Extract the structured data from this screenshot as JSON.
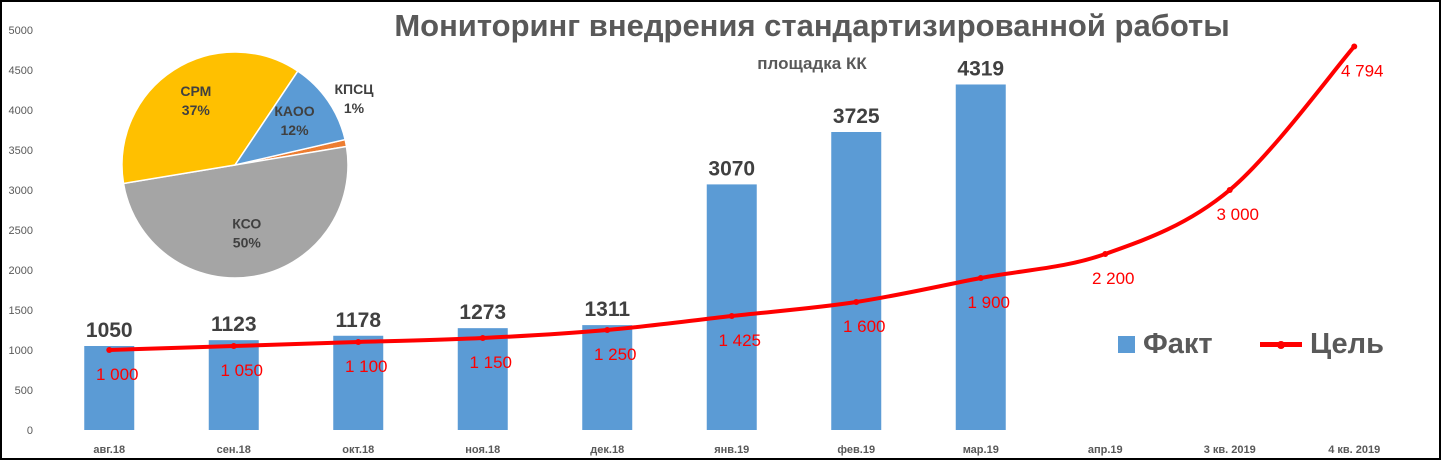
{
  "chart_data": [
    {
      "type": "bar",
      "title": "Мониторинг внедрения стандартизированной работы",
      "subtitle": "площадка КК",
      "categories": [
        "авг.18",
        "сен.18",
        "окт.18",
        "ноя.18",
        "дек.18",
        "янв.19",
        "фев.19",
        "мар.19",
        "апр.19",
        "3 кв. 2019",
        "4 кв. 2019"
      ],
      "ylim": [
        0,
        5000
      ],
      "yticks": [
        0,
        500,
        1000,
        1500,
        2000,
        2500,
        3000,
        3500,
        4000,
        4500,
        5000
      ],
      "grid": false,
      "legend": "right",
      "series": [
        {
          "name": "Факт",
          "kind": "bar",
          "color": "#5B9BD5",
          "values": [
            1050,
            1123,
            1178,
            1273,
            1311,
            3070,
            3725,
            4319,
            null,
            null,
            null
          ],
          "labels": [
            "1050",
            "1123",
            "1178",
            "1273",
            "1311",
            "3070",
            "3725",
            "4319",
            "",
            "",
            ""
          ]
        },
        {
          "name": "Цель",
          "kind": "line",
          "color": "#FF0000",
          "values": [
            1000,
            1050,
            1100,
            1150,
            1250,
            1425,
            1600,
            1900,
            2200,
            3000,
            4794
          ],
          "labels": [
            "1 000",
            "1 050",
            "1 100",
            "1 150",
            "1 250",
            "1 425",
            "1 600",
            "1 900",
            "2 200",
            "3 000",
            "4 794"
          ]
        }
      ]
    },
    {
      "type": "pie",
      "slices": [
        {
          "label": "КПСЦ",
          "percent_label": "1%",
          "value": 1,
          "color": "#ED7D31"
        },
        {
          "label": "КСО",
          "percent_label": "50%",
          "value": 50,
          "color": "#A5A5A5"
        },
        {
          "label": "СРМ",
          "percent_label": "37%",
          "value": 37,
          "color": "#FFC000"
        },
        {
          "label": "КАОО",
          "percent_label": "12%",
          "value": 12,
          "color": "#5B9BD5"
        }
      ]
    }
  ]
}
